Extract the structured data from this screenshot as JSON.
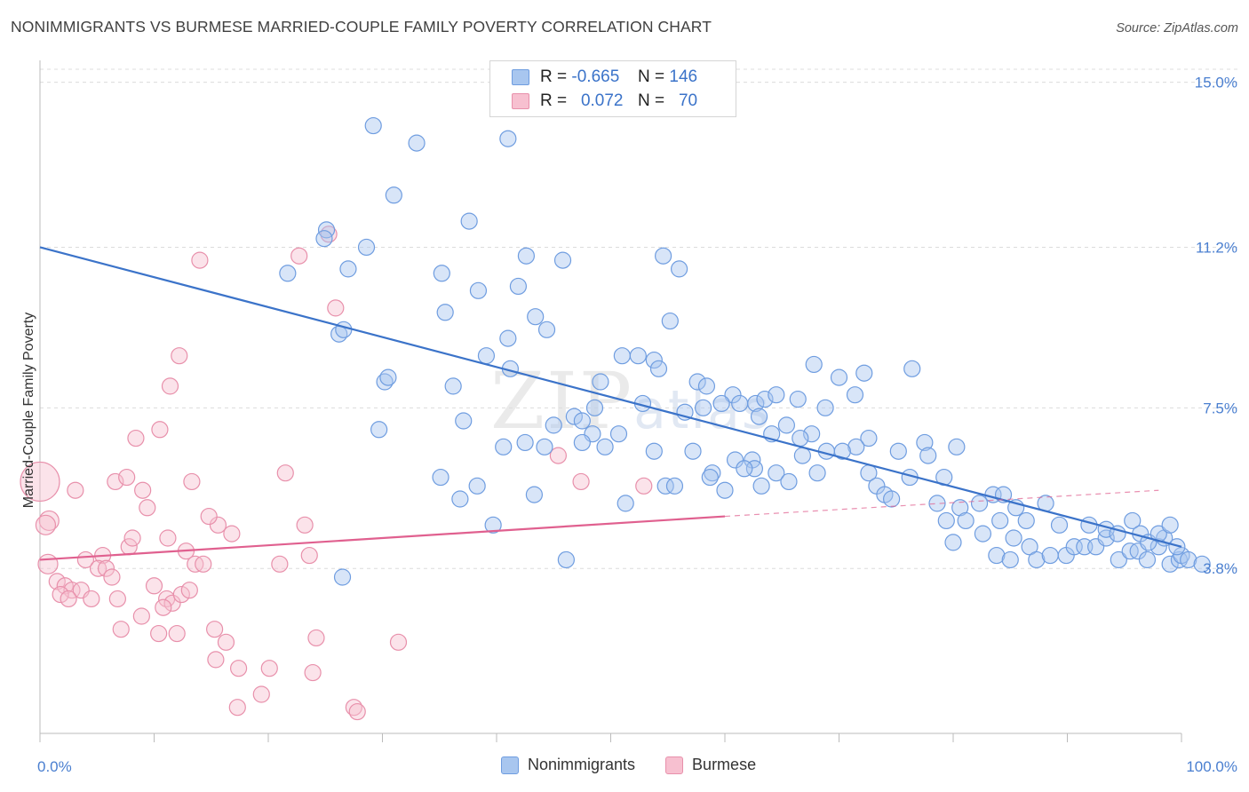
{
  "header": {
    "title": "NONIMMIGRANTS VS BURMESE MARRIED-COUPLE FAMILY POVERTY CORRELATION CHART",
    "source": "Source: ZipAtlas.com"
  },
  "watermark": {
    "main": "ZIP",
    "sub": "atlas"
  },
  "legend": {
    "rows": [
      {
        "r_label": "R =",
        "r_value": "-0.665",
        "n_label": "N =",
        "n_value": "146",
        "color": "#a8c6ef",
        "border": "#6f9de0"
      },
      {
        "r_label": "R =",
        "r_value": "0.072",
        "n_label": "N =",
        "n_value": "70",
        "color": "#f7c0d0",
        "border": "#e890ab"
      }
    ],
    "bottom": [
      {
        "label": "Nonimmigrants",
        "color": "#a8c6ef",
        "border": "#6f9de0"
      },
      {
        "label": "Burmese",
        "color": "#f7c0d0",
        "border": "#e890ab"
      }
    ]
  },
  "chart_data": {
    "type": "scatter",
    "title": "NONIMMIGRANTS VS BURMESE MARRIED-COUPLE FAMILY POVERTY CORRELATION CHART",
    "xlabel": "",
    "ylabel": "Married-Couple Family Poverty",
    "xlim": [
      0,
      100
    ],
    "ylim": [
      0,
      15.3
    ],
    "x_tick_labels": [
      "0.0%",
      "100.0%"
    ],
    "y_ticks": [
      3.8,
      7.5,
      11.2,
      15.0
    ],
    "y_tick_labels": [
      "3.8%",
      "7.5%",
      "11.2%",
      "15.0%"
    ],
    "grid": true,
    "legend_placement": "top-center",
    "colors": {
      "blue": "#3b73c9",
      "blue_fill": "#a8c6ef",
      "pink": "#e0608f",
      "pink_fill": "#f7c0d0"
    },
    "series": [
      {
        "name": "Nonimmigrants",
        "r": -0.665,
        "n": 146,
        "trend": {
          "x": [
            0,
            100
          ],
          "y": [
            11.2,
            4.3
          ]
        },
        "points": [
          [
            29.2,
            14.0
          ],
          [
            33.0,
            13.6
          ],
          [
            41.0,
            13.7
          ],
          [
            31.0,
            12.4
          ],
          [
            37.6,
            11.8
          ],
          [
            25.1,
            11.6
          ],
          [
            24.9,
            11.4
          ],
          [
            28.6,
            11.2
          ],
          [
            42.6,
            11.0
          ],
          [
            45.8,
            10.9
          ],
          [
            54.6,
            11.0
          ],
          [
            27.0,
            10.7
          ],
          [
            21.7,
            10.6
          ],
          [
            35.2,
            10.6
          ],
          [
            38.4,
            10.2
          ],
          [
            56.0,
            10.7
          ],
          [
            41.9,
            10.3
          ],
          [
            43.4,
            9.6
          ],
          [
            55.2,
            9.5
          ],
          [
            26.2,
            9.2
          ],
          [
            26.6,
            9.3
          ],
          [
            35.5,
            9.7
          ],
          [
            44.4,
            9.3
          ],
          [
            41.0,
            9.1
          ],
          [
            39.1,
            8.7
          ],
          [
            52.4,
            8.7
          ],
          [
            67.8,
            8.5
          ],
          [
            41.2,
            8.4
          ],
          [
            51.0,
            8.7
          ],
          [
            53.8,
            8.6
          ],
          [
            54.2,
            8.4
          ],
          [
            76.4,
            8.4
          ],
          [
            70.0,
            8.2
          ],
          [
            72.2,
            8.3
          ],
          [
            30.2,
            8.1
          ],
          [
            30.5,
            8.2
          ],
          [
            36.2,
            8.0
          ],
          [
            49.1,
            8.1
          ],
          [
            57.6,
            8.1
          ],
          [
            58.4,
            8.0
          ],
          [
            60.7,
            7.8
          ],
          [
            61.3,
            7.6
          ],
          [
            62.7,
            7.6
          ],
          [
            63.5,
            7.7
          ],
          [
            64.5,
            7.8
          ],
          [
            66.4,
            7.7
          ],
          [
            68.8,
            7.5
          ],
          [
            71.4,
            7.8
          ],
          [
            48.6,
            7.5
          ],
          [
            52.8,
            7.6
          ],
          [
            56.5,
            7.4
          ],
          [
            58.1,
            7.5
          ],
          [
            59.7,
            7.6
          ],
          [
            63.0,
            7.3
          ],
          [
            65.4,
            7.1
          ],
          [
            67.6,
            6.9
          ],
          [
            46.8,
            7.3
          ],
          [
            45.0,
            7.1
          ],
          [
            47.5,
            7.2
          ],
          [
            48.4,
            6.9
          ],
          [
            50.7,
            6.9
          ],
          [
            37.1,
            7.2
          ],
          [
            29.7,
            7.0
          ],
          [
            64.1,
            6.9
          ],
          [
            66.6,
            6.8
          ],
          [
            68.9,
            6.5
          ],
          [
            72.6,
            6.8
          ],
          [
            75.2,
            6.5
          ],
          [
            77.5,
            6.7
          ],
          [
            77.8,
            6.4
          ],
          [
            79.2,
            5.9
          ],
          [
            80.3,
            6.6
          ],
          [
            71.5,
            6.6
          ],
          [
            70.3,
            6.5
          ],
          [
            66.8,
            6.4
          ],
          [
            62.4,
            6.3
          ],
          [
            53.8,
            6.5
          ],
          [
            47.5,
            6.7
          ],
          [
            49.5,
            6.6
          ],
          [
            42.5,
            6.7
          ],
          [
            40.6,
            6.6
          ],
          [
            44.2,
            6.6
          ],
          [
            57.2,
            6.5
          ],
          [
            60.9,
            6.3
          ],
          [
            62.6,
            6.1
          ],
          [
            58.9,
            6.0
          ],
          [
            61.7,
            6.1
          ],
          [
            64.5,
            6.0
          ],
          [
            68.1,
            6.0
          ],
          [
            72.6,
            6.0
          ],
          [
            73.3,
            5.7
          ],
          [
            74.0,
            5.5
          ],
          [
            74.6,
            5.4
          ],
          [
            76.2,
            5.9
          ],
          [
            78.6,
            5.3
          ],
          [
            79.4,
            4.9
          ],
          [
            80.6,
            5.2
          ],
          [
            81.1,
            4.9
          ],
          [
            82.3,
            5.3
          ],
          [
            83.5,
            5.5
          ],
          [
            84.4,
            5.5
          ],
          [
            85.5,
            5.2
          ],
          [
            84.1,
            4.9
          ],
          [
            86.4,
            4.9
          ],
          [
            88.1,
            5.3
          ],
          [
            89.3,
            4.8
          ],
          [
            85.3,
            4.5
          ],
          [
            86.7,
            4.3
          ],
          [
            87.3,
            4.0
          ],
          [
            88.5,
            4.1
          ],
          [
            89.9,
            4.1
          ],
          [
            90.6,
            4.3
          ],
          [
            91.5,
            4.3
          ],
          [
            92.5,
            4.3
          ],
          [
            93.4,
            4.5
          ],
          [
            94.5,
            4.0
          ],
          [
            95.5,
            4.2
          ],
          [
            96.2,
            4.2
          ],
          [
            97.0,
            4.0
          ],
          [
            98.0,
            4.3
          ],
          [
            99.0,
            3.9
          ],
          [
            99.8,
            4.0
          ],
          [
            100.0,
            4.1
          ],
          [
            100.6,
            4.0
          ],
          [
            101.8,
            3.9
          ],
          [
            91.9,
            4.8
          ],
          [
            93.4,
            4.7
          ],
          [
            94.4,
            4.6
          ],
          [
            95.7,
            4.9
          ],
          [
            96.4,
            4.6
          ],
          [
            97.1,
            4.4
          ],
          [
            98.5,
            4.5
          ],
          [
            99.6,
            4.3
          ],
          [
            80.0,
            4.4
          ],
          [
            82.6,
            4.6
          ],
          [
            83.8,
            4.1
          ],
          [
            85.0,
            4.0
          ],
          [
            98.0,
            4.6
          ],
          [
            99.0,
            4.8
          ],
          [
            26.5,
            3.6
          ],
          [
            35.1,
            5.9
          ],
          [
            36.8,
            5.4
          ],
          [
            38.3,
            5.7
          ],
          [
            39.7,
            4.8
          ],
          [
            43.3,
            5.5
          ],
          [
            46.1,
            4.0
          ],
          [
            51.3,
            5.3
          ],
          [
            54.8,
            5.7
          ],
          [
            55.6,
            5.7
          ],
          [
            58.7,
            5.9
          ],
          [
            60.0,
            5.6
          ],
          [
            63.2,
            5.7
          ],
          [
            65.6,
            5.8
          ]
        ]
      },
      {
        "name": "Burmese",
        "r": 0.072,
        "n": 70,
        "trend": {
          "x": [
            0,
            60
          ],
          "y": [
            4.0,
            5.0
          ]
        },
        "trend_ext": {
          "x": [
            60,
            98
          ],
          "y": [
            5.0,
            5.6
          ]
        },
        "points": [
          [
            0.0,
            5.8
          ],
          [
            0.8,
            4.9
          ],
          [
            0.5,
            4.8
          ],
          [
            0.7,
            3.9
          ],
          [
            3.1,
            5.6
          ],
          [
            6.6,
            5.8
          ],
          [
            7.6,
            5.9
          ],
          [
            9.0,
            5.6
          ],
          [
            9.4,
            5.2
          ],
          [
            7.8,
            4.3
          ],
          [
            8.1,
            4.5
          ],
          [
            4.0,
            4.0
          ],
          [
            5.5,
            4.1
          ],
          [
            5.1,
            3.8
          ],
          [
            5.8,
            3.8
          ],
          [
            6.3,
            3.6
          ],
          [
            1.5,
            3.5
          ],
          [
            2.2,
            3.4
          ],
          [
            2.8,
            3.3
          ],
          [
            3.6,
            3.3
          ],
          [
            1.8,
            3.2
          ],
          [
            2.5,
            3.1
          ],
          [
            4.5,
            3.1
          ],
          [
            6.8,
            3.1
          ],
          [
            10.0,
            3.4
          ],
          [
            11.1,
            3.1
          ],
          [
            11.6,
            3.0
          ],
          [
            12.4,
            3.2
          ],
          [
            13.1,
            3.3
          ],
          [
            8.9,
            2.7
          ],
          [
            10.8,
            2.9
          ],
          [
            7.1,
            2.4
          ],
          [
            10.4,
            2.3
          ],
          [
            12.0,
            2.3
          ],
          [
            15.3,
            2.4
          ],
          [
            16.3,
            2.1
          ],
          [
            15.4,
            1.7
          ],
          [
            17.4,
            1.5
          ],
          [
            20.1,
            1.5
          ],
          [
            19.4,
            0.9
          ],
          [
            17.3,
            0.6
          ],
          [
            23.9,
            1.4
          ],
          [
            24.2,
            2.2
          ],
          [
            27.5,
            0.6
          ],
          [
            27.8,
            0.5
          ],
          [
            31.4,
            2.1
          ],
          [
            11.2,
            4.5
          ],
          [
            12.8,
            4.2
          ],
          [
            13.6,
            3.9
          ],
          [
            14.3,
            3.9
          ],
          [
            15.6,
            4.8
          ],
          [
            16.8,
            4.6
          ],
          [
            14.8,
            5.0
          ],
          [
            13.3,
            5.8
          ],
          [
            8.4,
            6.8
          ],
          [
            10.5,
            7.0
          ],
          [
            11.4,
            8.0
          ],
          [
            14.0,
            10.9
          ],
          [
            22.7,
            11.0
          ],
          [
            25.3,
            11.5
          ],
          [
            25.9,
            9.8
          ],
          [
            12.2,
            8.7
          ],
          [
            21.5,
            6.0
          ],
          [
            23.2,
            4.8
          ],
          [
            23.6,
            4.1
          ],
          [
            47.4,
            5.8
          ],
          [
            52.9,
            5.7
          ],
          [
            45.4,
            6.4
          ],
          [
            21.0,
            3.9
          ]
        ]
      }
    ]
  }
}
